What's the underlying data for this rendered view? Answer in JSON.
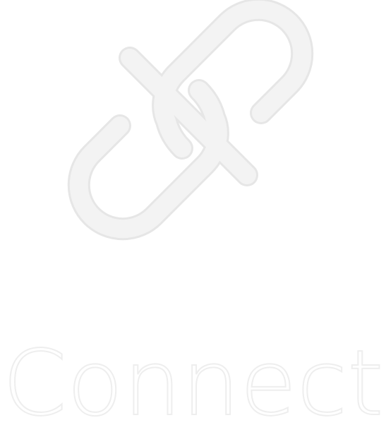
{
  "label": {
    "text": "Connect"
  },
  "icon": {
    "name": "broken-chain-link-icon"
  },
  "colors": {
    "background": "#ffffff",
    "icon_stroke": "#f3f3f3",
    "icon_outline": "#e6e6e6",
    "text_stroke": "#eeeeee",
    "text_fill": "#ffffff"
  }
}
